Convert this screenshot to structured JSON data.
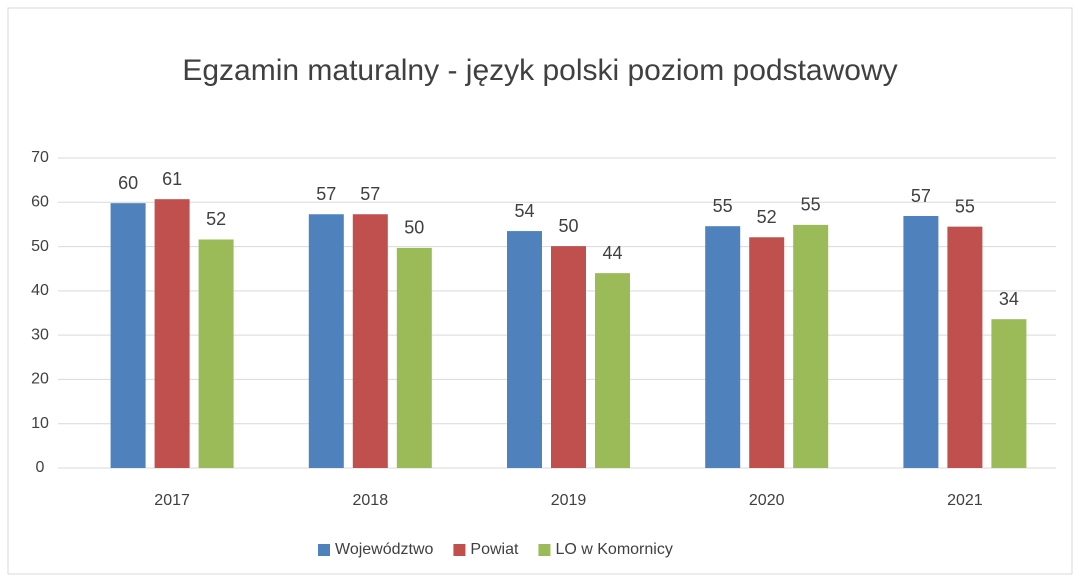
{
  "chart_data": {
    "type": "bar",
    "title": "Egzamin maturalny - język polski poziom podstawowy",
    "categories": [
      "2017",
      "2018",
      "2019",
      "2020",
      "2021"
    ],
    "series": [
      {
        "name": "Województwo",
        "color": "#4f81bd",
        "values": [
          59.8,
          57.3,
          53.5,
          54.6,
          56.9
        ],
        "value_labels": [
          "60",
          "57",
          "54",
          "55",
          "57"
        ]
      },
      {
        "name": "Powiat",
        "color": "#c0504d",
        "values": [
          60.7,
          57.3,
          50.1,
          52.1,
          54.5
        ],
        "value_labels": [
          "61",
          "57",
          "50",
          "52",
          "55"
        ]
      },
      {
        "name": "LO w Komornicy",
        "color": "#9bbb59",
        "values": [
          51.6,
          49.7,
          44.0,
          54.9,
          33.6
        ],
        "value_labels": [
          "52",
          "50",
          "44",
          "55",
          "34"
        ]
      }
    ],
    "ylim": [
      0,
      70
    ],
    "yticks": [
      0,
      10,
      20,
      30,
      40,
      50,
      60,
      70
    ],
    "grid": true,
    "legend": "bottom"
  }
}
